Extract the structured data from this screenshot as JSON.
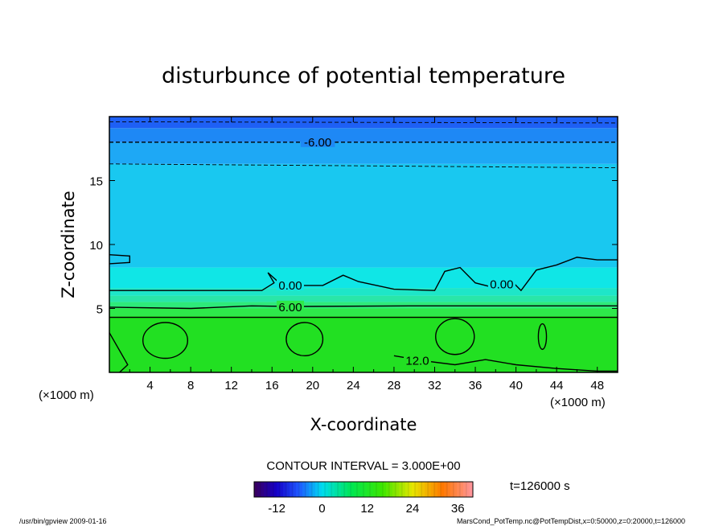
{
  "chart_data": {
    "type": "heatmap",
    "title": "disturbunce of potential temperature",
    "xlabel": "X-coordinate",
    "ylabel": "Z-coordinate",
    "x_unit": "(×1000 m)",
    "y_unit": "(×1000 m)",
    "xlim": [
      0,
      50
    ],
    "ylim": [
      0,
      20
    ],
    "x_ticks": [
      4,
      8,
      12,
      16,
      20,
      24,
      28,
      32,
      36,
      40,
      44,
      48
    ],
    "y_ticks": [
      5,
      10,
      15
    ],
    "contour_labels": [
      "-6.00",
      "0.00",
      "0.00",
      "6.00",
      "12.0"
    ],
    "contour_interval": "CONTOUR INTERVAL = 3.000E+00",
    "time_label": "t=126000 s",
    "colorbar": {
      "range": [
        -18,
        40
      ],
      "ticks": [
        "-12",
        "0",
        "12",
        "24",
        "36"
      ]
    },
    "bands": [
      {
        "z0": 0.0,
        "z1": 4.4,
        "color": "#22e022"
      },
      {
        "z0": 4.4,
        "z1": 5.0,
        "color": "#2ee84a"
      },
      {
        "z0": 5.0,
        "z1": 5.5,
        "color": "#2eea7a"
      },
      {
        "z0": 5.5,
        "z1": 6.0,
        "color": "#29e6a8"
      },
      {
        "z0": 6.0,
        "z1": 6.6,
        "color": "#1ee6c8"
      },
      {
        "z0": 6.6,
        "z1": 8.2,
        "color": "#10e6e6"
      },
      {
        "z0": 8.2,
        "z1": 16.3,
        "color": "#19c8f0"
      },
      {
        "z0": 16.3,
        "z1": 18.0,
        "color": "#1ea8f5"
      },
      {
        "z0": 18.0,
        "z1": 19.1,
        "color": "#1e88f5"
      },
      {
        "z0": 19.1,
        "z1": 20.0,
        "color": "#1e60f5"
      }
    ],
    "solid_contours": [
      {
        "level": "12.0",
        "points": [
          [
            0,
            3.1
          ],
          [
            1.8,
            0.6
          ],
          [
            1.0,
            0
          ]
        ]
      },
      {
        "level": "12.0",
        "points": [
          [
            28,
            1.3
          ],
          [
            31,
            0.9
          ],
          [
            34,
            0.6
          ],
          [
            37,
            1.0
          ],
          [
            40,
            0.6
          ],
          [
            44,
            0.3
          ],
          [
            48,
            0.1
          ],
          [
            50,
            0.1
          ]
        ]
      },
      {
        "level": "6.00",
        "points": [
          [
            0,
            4.3
          ],
          [
            50,
            4.3
          ]
        ]
      },
      {
        "level": "6.00",
        "points": [
          [
            0,
            5.1
          ],
          [
            8,
            5.0
          ],
          [
            14,
            5.2
          ],
          [
            18,
            5.15
          ],
          [
            30,
            5.2
          ],
          [
            50,
            5.2
          ]
        ]
      },
      {
        "level": "0.00",
        "points": [
          [
            0,
            6.4
          ],
          [
            15,
            6.4
          ],
          [
            16.2,
            7.0
          ],
          [
            15.6,
            7.8
          ],
          [
            17,
            6.8
          ],
          [
            21,
            6.8
          ],
          [
            23,
            7.6
          ],
          [
            24.5,
            7.1
          ],
          [
            28,
            6.5
          ],
          [
            32,
            6.4
          ],
          [
            33,
            7.9
          ],
          [
            34.5,
            8.2
          ],
          [
            36,
            7.0
          ],
          [
            38,
            6.6
          ],
          [
            39.5,
            7.2
          ],
          [
            40.5,
            6.4
          ],
          [
            42,
            8.0
          ],
          [
            44,
            8.4
          ],
          [
            46,
            9.0
          ],
          [
            48,
            8.8
          ],
          [
            50,
            8.8
          ]
        ]
      },
      {
        "level": "0.00",
        "points": [
          [
            0,
            9.2
          ],
          [
            2.0,
            9.1
          ],
          [
            2.0,
            8.6
          ],
          [
            0,
            8.5
          ]
        ]
      }
    ],
    "dashed_contours": [
      {
        "level": "-6.00",
        "points": [
          [
            0,
            18.0
          ],
          [
            50,
            18.0
          ]
        ]
      },
      {
        "level": "-6.00",
        "points": [
          [
            0,
            16.3
          ],
          [
            50,
            16.0
          ]
        ]
      },
      {
        "level": "-6.00",
        "points": [
          [
            0,
            19.6
          ],
          [
            50,
            19.5
          ]
        ]
      }
    ],
    "closed_contours": [
      {
        "level": "12.0",
        "center": [
          5.5,
          2.5
        ],
        "rx": 2.2,
        "ry": 1.4
      },
      {
        "level": "12.0",
        "center": [
          19.2,
          2.6
        ],
        "rx": 1.8,
        "ry": 1.3
      },
      {
        "level": "12.0",
        "center": [
          34.0,
          2.8
        ],
        "rx": 1.9,
        "ry": 1.4
      },
      {
        "level": "12.0",
        "center": [
          42.6,
          2.8
        ],
        "rx": 0.4,
        "ry": 1.0
      }
    ]
  },
  "footer": {
    "left": "/usr/bin/gpview   2009-01-16",
    "right": "MarsCond_PotTemp.nc@PotTempDist,x=0:50000,z=0:20000,t=126000"
  }
}
